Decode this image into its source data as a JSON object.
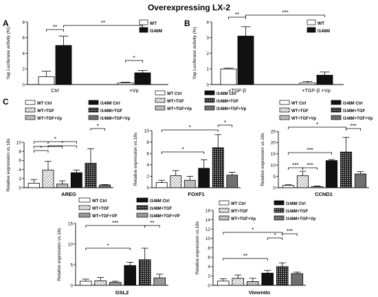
{
  "figure_title": "Overexpressing LX-2",
  "panel_labels": [
    "A",
    "B",
    "C"
  ],
  "patterns": {
    "WT Ctrl": "white",
    "WT+TGF": "diag",
    "WT+TGF+Vp": "light",
    "I148M Ctrl": "black",
    "I148M+TGF": "dots",
    "I148M+TGF+Vp": "dark",
    "WT": "white",
    "I148M": "black"
  },
  "chart_data": [
    {
      "id": "A",
      "type": "bar",
      "ylabel": "Yap Luciferase activity (%)",
      "ylim": [
        0,
        8
      ],
      "yticks": [
        0,
        2,
        4,
        6,
        8
      ],
      "categories": [
        "Ctrl",
        "+Vp"
      ],
      "series": [
        {
          "name": "WT",
          "values": [
            1.0,
            0.2
          ],
          "errors": [
            0.7,
            0.1
          ]
        },
        {
          "name": "I148M",
          "values": [
            5.0,
            1.5
          ],
          "errors": [
            1.2,
            0.3
          ]
        }
      ],
      "legend": [
        "WT",
        "I148M"
      ],
      "significance": [
        "**",
        "**",
        "*"
      ]
    },
    {
      "id": "B",
      "type": "bar",
      "ylabel": "Yap Luciferase activity (%)",
      "ylim": [
        0,
        4
      ],
      "yticks": [
        0,
        1,
        2,
        3,
        4
      ],
      "categories": [
        "+TGF-β",
        "+TGF-β +Vp"
      ],
      "series": [
        {
          "name": "WT",
          "values": [
            1.0,
            0.1
          ],
          "errors": [
            0.05,
            0.1
          ]
        },
        {
          "name": "I148M",
          "values": [
            3.1,
            0.6
          ],
          "errors": [
            0.6,
            0.2
          ]
        }
      ],
      "legend": [
        "WT",
        "I148M"
      ],
      "significance": [
        "**",
        "***"
      ]
    },
    {
      "id": "AREG",
      "type": "bar",
      "xlabel": "AREG",
      "ylabel": "Relative expression vs.18s",
      "ylim": [
        0,
        10
      ],
      "yticks": [
        0,
        2,
        4,
        6,
        8,
        10
      ],
      "categories": [
        "WT Ctrl",
        "WT+TGF",
        "WT+TGF+Vp",
        "I148M Ctrl",
        "I148M+TGF",
        "I148M+TGF+Vp"
      ],
      "values": [
        1.0,
        3.9,
        0.8,
        3.3,
        5.4,
        0.6
      ],
      "errors": [
        0.8,
        1.9,
        0.7,
        0.6,
        3.2,
        0.1
      ],
      "legend": [
        "WT Ctrl",
        "WT+TGF",
        "WT+TGF+Vp",
        "I148M Ctrl",
        "I148M+TGF",
        "I148M+TGF+Vp"
      ],
      "significance": [
        "*",
        "*",
        "*",
        "*",
        "*"
      ]
    },
    {
      "id": "FOXF1",
      "type": "bar",
      "xlabel": "FOXF1",
      "ylabel": "Relative expression vs.18s",
      "ylim": [
        0,
        10
      ],
      "yticks": [
        0,
        2,
        4,
        6,
        8,
        10
      ],
      "categories": [
        "WT Ctrl",
        "WT+TGF",
        "WT+TGF+Vp",
        "I148M Ctrl",
        "I148M+TGF",
        "I148M+TGF+Vp"
      ],
      "values": [
        0.9,
        2.1,
        1.3,
        3.4,
        7.0,
        2.2
      ],
      "errors": [
        0.4,
        0.9,
        0.7,
        1.5,
        2.3,
        0.5
      ],
      "legend": [
        "WT Ctrl",
        "WT+TGF",
        "WT+TGF+Vp",
        "I148M Ctrl",
        "I148M+TGF",
        "I148M+TGF+Vp"
      ],
      "significance": [
        "*",
        "*",
        "*"
      ]
    },
    {
      "id": "CCND1",
      "type": "bar",
      "xlabel": "CCND1",
      "ylabel": "Relative expression vs.18s",
      "ylim": [
        0,
        25
      ],
      "yticks": [
        0,
        5,
        10,
        15,
        20,
        25
      ],
      "categories": [
        "WT Ctrl",
        "WT+TGF",
        "WT+TGF+Vp",
        "I148M Ctrl",
        "I148M+TGF",
        "I148M+TGF+Vp"
      ],
      "values": [
        1.0,
        5.3,
        0.5,
        12.0,
        15.8,
        6.1
      ],
      "errors": [
        0.3,
        2.0,
        0.3,
        0.5,
        6.5,
        1.0
      ],
      "legend": [
        "WT Ctrl",
        "WT+TGF",
        "WT+TGF+Vp",
        "I148M Ctrl",
        "I148M+TGF",
        "I148M+TGF+Vp"
      ],
      "significance": [
        "***",
        "***",
        "***",
        "*",
        "***"
      ]
    },
    {
      "id": "GSL2",
      "type": "bar",
      "xlabel": "GSL2",
      "ylabel": "Relative expression vs.18s",
      "ylim": [
        0,
        15
      ],
      "yticks": [
        0,
        5,
        10,
        15
      ],
      "categories": [
        "WT Ctrl",
        "WT+TGF",
        "WT+TGF+VP",
        "I148M Ctrl",
        "I148M+TGF",
        "I148M+TGF+VP"
      ],
      "values": [
        1.0,
        1.1,
        0.7,
        4.8,
        6.2,
        1.8
      ],
      "errors": [
        0.5,
        0.8,
        0.3,
        0.8,
        2.8,
        0.9
      ],
      "legend": [
        "WT Ctrl",
        "WT+TGF",
        "WT+TGF+VP",
        "I148M Ctrl",
        "I148M+TGF",
        "I148M+TGF+VP"
      ],
      "significance": [
        "*",
        "***",
        "**"
      ]
    },
    {
      "id": "Vimentin",
      "type": "bar",
      "xlabel": "Vimentin",
      "ylabel": "Relative expression vs.18s",
      "ylim": [
        0,
        16
      ],
      "yticks": [
        0,
        2,
        4,
        6,
        8,
        10,
        12,
        14,
        16
      ],
      "categories": [
        "WT Ctrl",
        "WT+TGF",
        "WT+TGF+Vp",
        "I148M Ctrl",
        "I148M+TGF",
        "I148M+TGF+Vp"
      ],
      "values": [
        0.9,
        1.5,
        0.8,
        2.6,
        4.0,
        2.5
      ],
      "errors": [
        0.5,
        0.7,
        0.7,
        0.6,
        0.8,
        0.3
      ],
      "legend": [
        "WT Ctrl",
        "WT+TGF",
        "WT+TGF+Vp",
        "I148M Ctrl",
        "I148M+TGF",
        "I148M+TGF+Vp"
      ],
      "significance": [
        "**",
        "*",
        "*",
        "***"
      ]
    }
  ]
}
